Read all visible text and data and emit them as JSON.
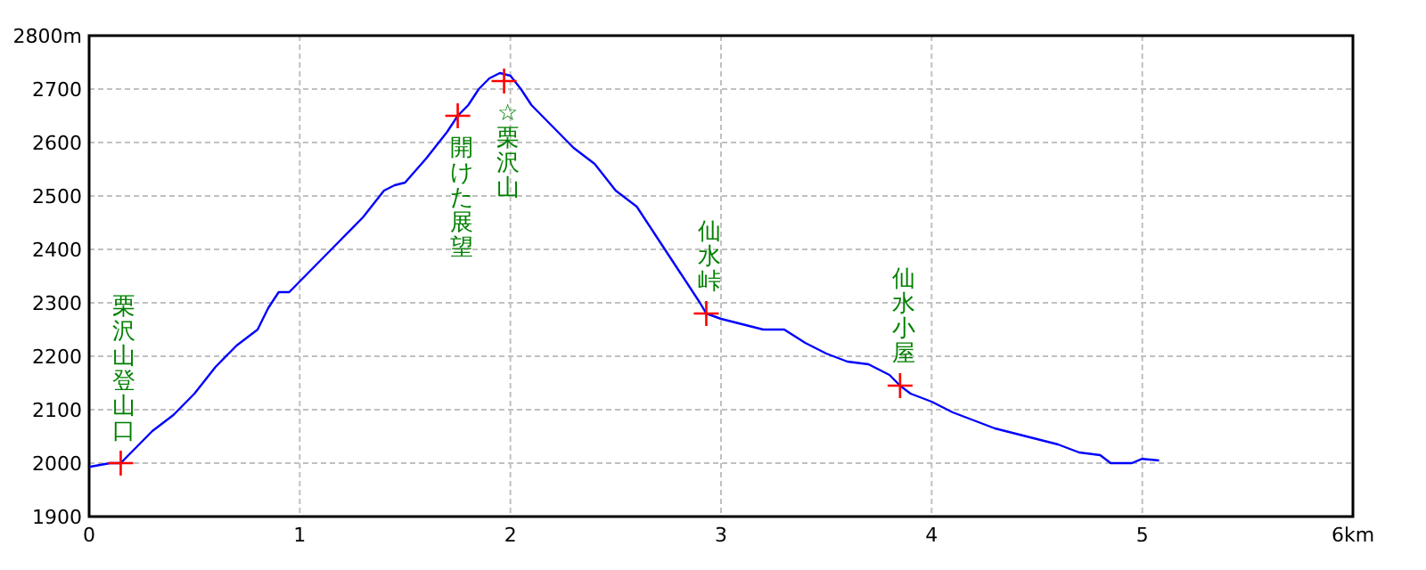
{
  "chart_data": {
    "type": "line",
    "xlim": [
      0,
      6
    ],
    "ylim": [
      1900,
      2800
    ],
    "xticks": [
      0,
      1,
      2,
      3,
      4,
      5,
      {
        "value": 6,
        "label": "6km"
      }
    ],
    "yticks": [
      1900,
      2000,
      2100,
      2200,
      2300,
      2400,
      2500,
      2600,
      2700,
      {
        "value": 2800,
        "label": "2800m"
      }
    ],
    "grid": true,
    "series": [
      {
        "color": "#0000ff",
        "x": [
          0,
          0.1,
          0.15,
          0.2,
          0.3,
          0.4,
          0.5,
          0.6,
          0.7,
          0.8,
          0.85,
          0.9,
          0.95,
          1.0,
          1.1,
          1.2,
          1.3,
          1.4,
          1.45,
          1.5,
          1.6,
          1.7,
          1.75,
          1.8,
          1.85,
          1.9,
          1.95,
          2.0,
          2.05,
          2.1,
          2.2,
          2.3,
          2.4,
          2.5,
          2.6,
          2.7,
          2.8,
          2.9,
          2.93,
          3.0,
          3.1,
          3.2,
          3.3,
          3.4,
          3.5,
          3.6,
          3.7,
          3.8,
          3.85,
          3.9,
          4.0,
          4.1,
          4.2,
          4.3,
          4.4,
          4.5,
          4.6,
          4.7,
          4.8,
          4.85,
          4.95,
          5.0,
          5.08
        ],
        "values": [
          1993,
          2000,
          2000,
          2020,
          2060,
          2090,
          2130,
          2180,
          2220,
          2250,
          2290,
          2320,
          2320,
          2340,
          2380,
          2420,
          2460,
          2510,
          2520,
          2525,
          2570,
          2620,
          2650,
          2670,
          2700,
          2720,
          2730,
          2725,
          2700,
          2670,
          2630,
          2590,
          2560,
          2510,
          2480,
          2420,
          2360,
          2300,
          2280,
          2270,
          2260,
          2250,
          2250,
          2225,
          2205,
          2190,
          2185,
          2165,
          2145,
          2130,
          2115,
          2095,
          2080,
          2065,
          2055,
          2045,
          2035,
          2020,
          2015,
          2000,
          2000,
          2008,
          2005
        ]
      },
      {
        "type": "scatter",
        "color": "#ff0000",
        "marker": "cross",
        "x": [
          0.15,
          1.75,
          1.97,
          2.93,
          3.85
        ],
        "values": [
          2000,
          2650,
          2715,
          2280,
          2145
        ]
      }
    ],
    "annotations": [
      {
        "text": "栗沢山登山口",
        "x": 0.15,
        "y": 2000
      },
      {
        "text": "開けた展望",
        "x": 1.75,
        "y": 2650
      },
      {
        "text": "☆栗沢山",
        "x": 1.97,
        "y": 2715
      },
      {
        "text": "仙水峠",
        "x": 2.93,
        "y": 2280
      },
      {
        "text": "仙水小屋",
        "x": 3.85,
        "y": 2145
      }
    ]
  }
}
